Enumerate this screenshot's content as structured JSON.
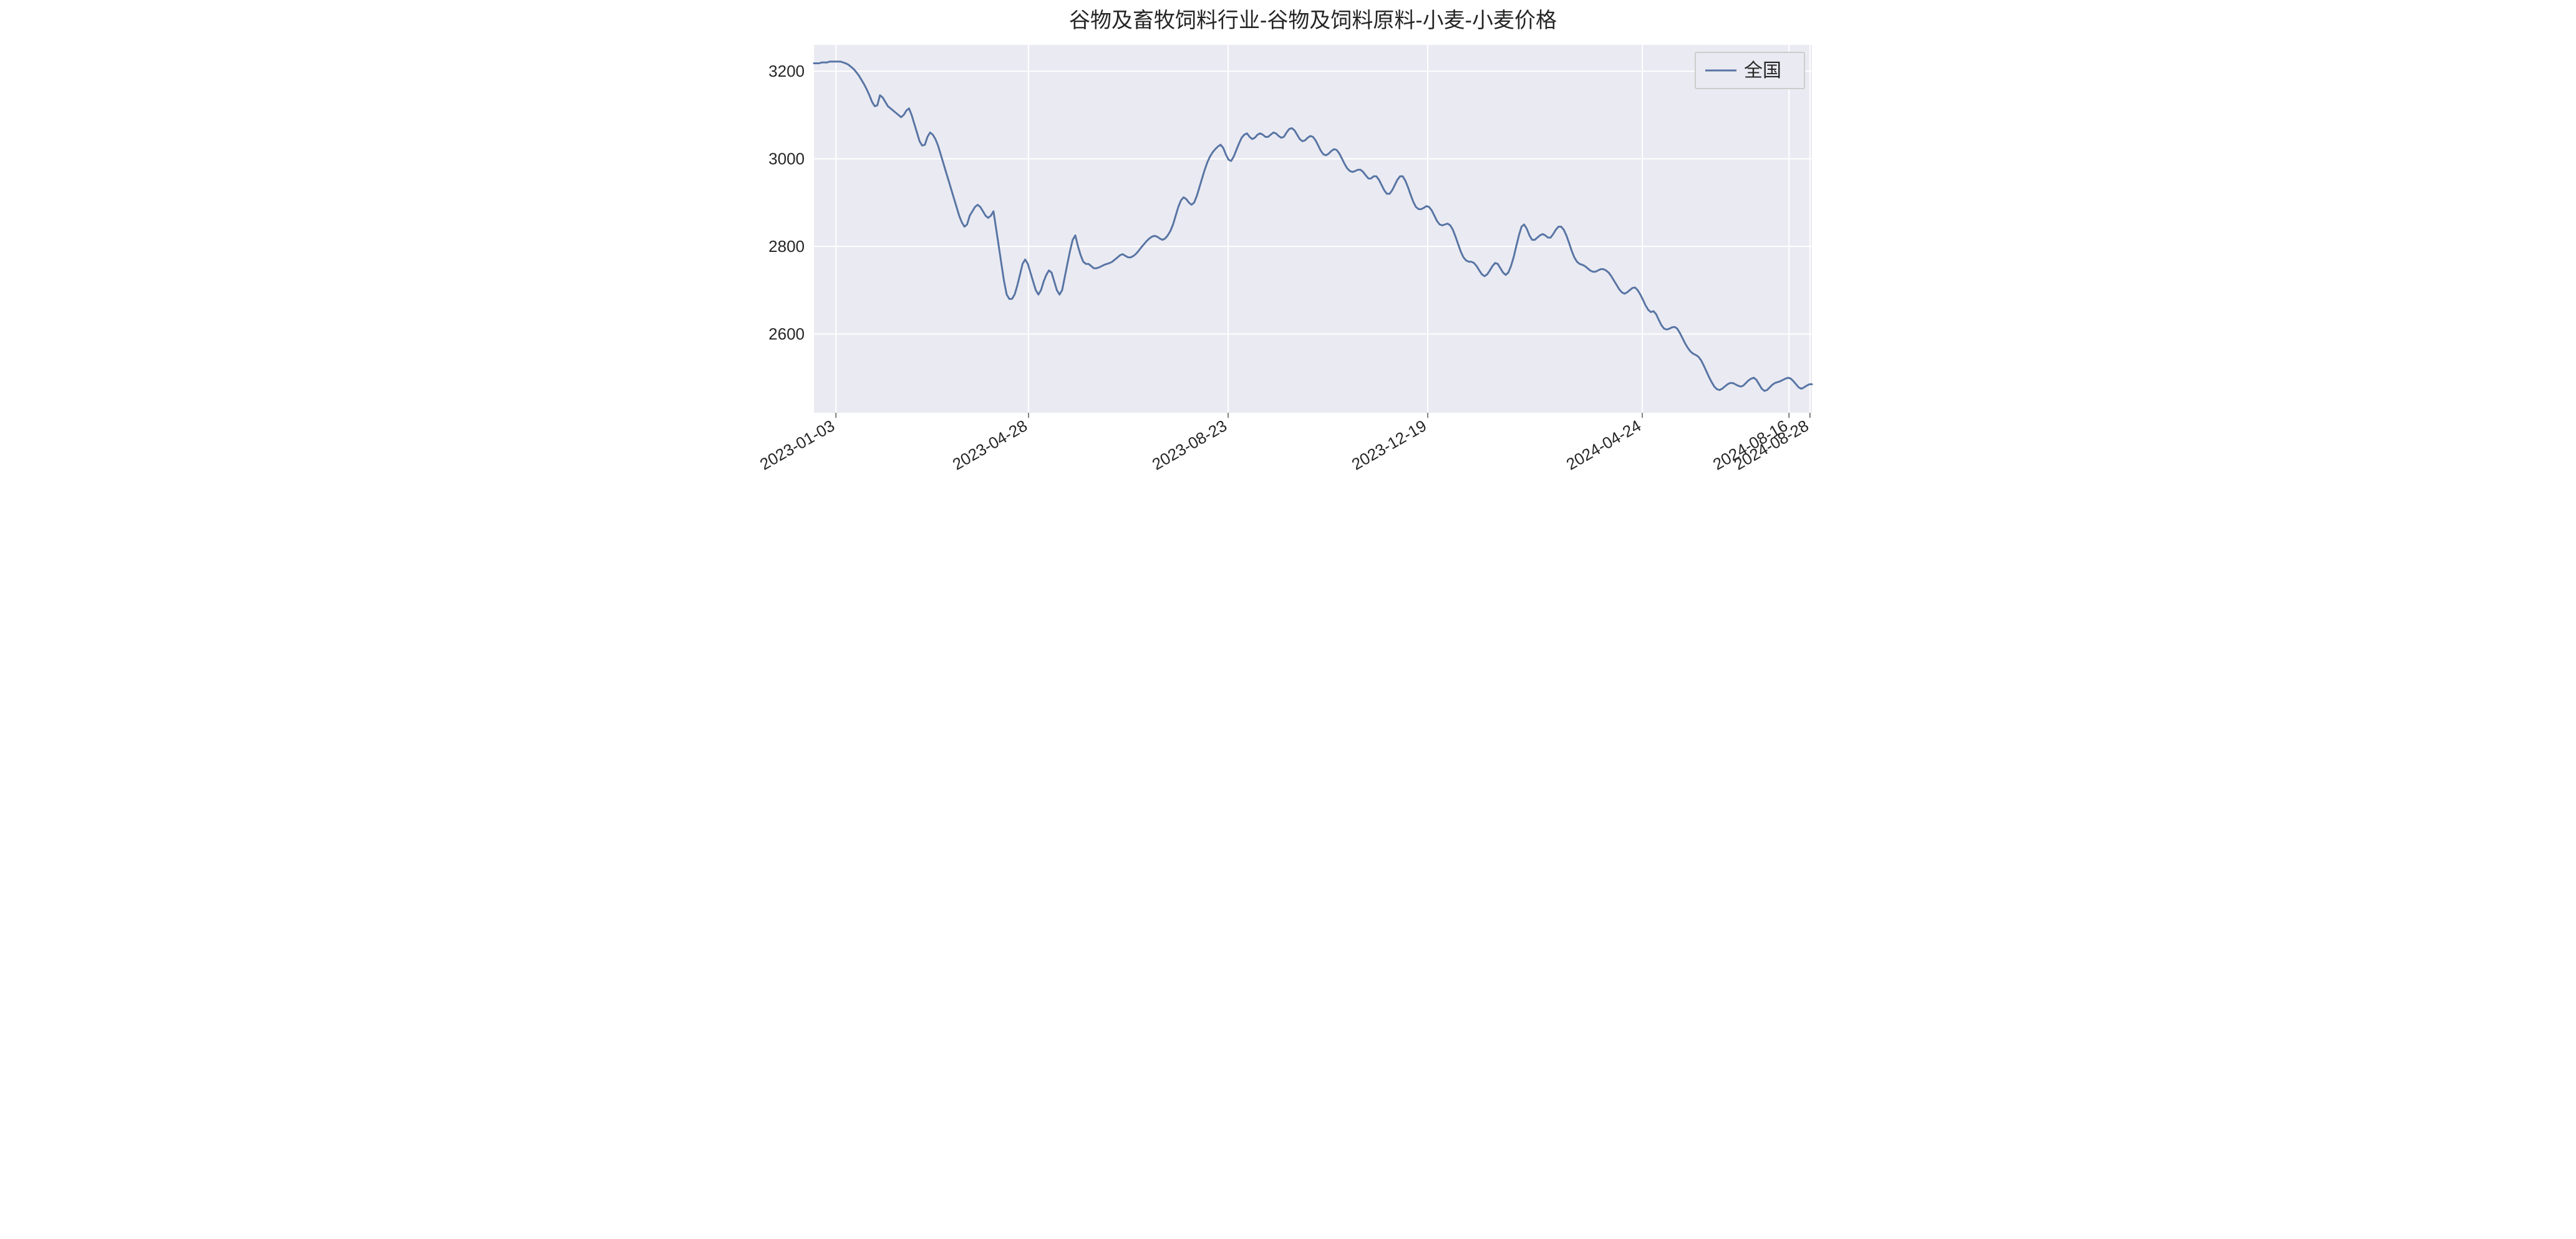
{
  "chart": {
    "type": "line",
    "title": "谷物及畜牧饲料行业-谷物及饲料原料-小麦-小麦价格",
    "title_fontsize": 34,
    "legend": {
      "label": "全国",
      "position": "upper-right"
    },
    "background_color": "#ffffff",
    "plot_background_color": "#eaeaf2",
    "grid_color": "#ffffff",
    "grid_linewidth": 2,
    "line_color": "#5875a4",
    "line_width": 3,
    "tick_fontsize": 26,
    "tick_color": "#262626",
    "ylim": [
      2420,
      3260
    ],
    "yticks": [
      2600,
      2800,
      3000,
      3200
    ],
    "xtick_labels": [
      "2023-01-03",
      "2023-04-28",
      "2023-08-23",
      "2023-12-19",
      "2024-04-24",
      "2024-08-16",
      "2024-08-28"
    ],
    "xtick_positions": [
      0.022,
      0.215,
      0.415,
      0.615,
      0.83,
      0.977,
      0.998
    ],
    "xtick_rotation": 30,
    "series": {
      "name": "全国",
      "values": [
        3218,
        3218,
        3218,
        3220,
        3220,
        3220,
        3222,
        3222,
        3222,
        3222,
        3222,
        3220,
        3218,
        3215,
        3210,
        3205,
        3198,
        3190,
        3180,
        3170,
        3158,
        3145,
        3130,
        3120,
        3122,
        3145,
        3140,
        3130,
        3120,
        3115,
        3110,
        3105,
        3100,
        3095,
        3100,
        3110,
        3115,
        3100,
        3080,
        3060,
        3040,
        3030,
        3032,
        3050,
        3060,
        3055,
        3045,
        3030,
        3010,
        2990,
        2970,
        2950,
        2930,
        2910,
        2890,
        2870,
        2855,
        2845,
        2850,
        2870,
        2880,
        2890,
        2895,
        2890,
        2880,
        2870,
        2865,
        2870,
        2880,
        2840,
        2800,
        2760,
        2720,
        2690,
        2680,
        2680,
        2690,
        2710,
        2735,
        2760,
        2770,
        2760,
        2740,
        2720,
        2700,
        2690,
        2700,
        2720,
        2735,
        2745,
        2740,
        2720,
        2700,
        2690,
        2700,
        2730,
        2760,
        2790,
        2815,
        2825,
        2800,
        2780,
        2765,
        2760,
        2760,
        2755,
        2750,
        2750,
        2752,
        2755,
        2758,
        2760,
        2762,
        2765,
        2770,
        2775,
        2780,
        2782,
        2778,
        2775,
        2775,
        2778,
        2783,
        2790,
        2798,
        2805,
        2812,
        2818,
        2822,
        2824,
        2822,
        2818,
        2815,
        2818,
        2825,
        2835,
        2850,
        2870,
        2890,
        2905,
        2912,
        2908,
        2900,
        2895,
        2900,
        2915,
        2935,
        2955,
        2975,
        2992,
        3005,
        3015,
        3022,
        3028,
        3032,
        3025,
        3010,
        2998,
        2995,
        3005,
        3020,
        3035,
        3048,
        3055,
        3058,
        3050,
        3045,
        3048,
        3055,
        3058,
        3055,
        3050,
        3050,
        3055,
        3060,
        3058,
        3052,
        3048,
        3050,
        3060,
        3068,
        3070,
        3065,
        3055,
        3045,
        3040,
        3042,
        3048,
        3052,
        3050,
        3042,
        3030,
        3018,
        3010,
        3008,
        3012,
        3018,
        3022,
        3020,
        3012,
        3000,
        2988,
        2978,
        2972,
        2970,
        2972,
        2975,
        2975,
        2970,
        2962,
        2955,
        2955,
        2960,
        2960,
        2952,
        2940,
        2928,
        2920,
        2920,
        2928,
        2940,
        2952,
        2960,
        2960,
        2950,
        2935,
        2918,
        2902,
        2890,
        2885,
        2885,
        2888,
        2892,
        2890,
        2882,
        2870,
        2858,
        2850,
        2848,
        2850,
        2852,
        2848,
        2838,
        2822,
        2805,
        2788,
        2775,
        2768,
        2765,
        2765,
        2762,
        2755,
        2745,
        2736,
        2732,
        2736,
        2745,
        2755,
        2762,
        2760,
        2750,
        2740,
        2735,
        2740,
        2755,
        2775,
        2800,
        2825,
        2845,
        2850,
        2840,
        2825,
        2815,
        2815,
        2820,
        2825,
        2828,
        2825,
        2820,
        2820,
        2828,
        2838,
        2845,
        2845,
        2838,
        2825,
        2808,
        2790,
        2775,
        2765,
        2760,
        2758,
        2755,
        2750,
        2745,
        2742,
        2742,
        2745,
        2748,
        2748,
        2745,
        2740,
        2732,
        2722,
        2712,
        2702,
        2695,
        2692,
        2695,
        2700,
        2705,
        2706,
        2700,
        2690,
        2678,
        2665,
        2655,
        2650,
        2652,
        2645,
        2632,
        2620,
        2612,
        2610,
        2612,
        2615,
        2616,
        2612,
        2602,
        2590,
        2578,
        2568,
        2560,
        2555,
        2552,
        2548,
        2540,
        2528,
        2515,
        2502,
        2490,
        2480,
        2474,
        2472,
        2475,
        2480,
        2485,
        2488,
        2488,
        2485,
        2482,
        2480,
        2482,
        2488,
        2494,
        2498,
        2500,
        2495,
        2485,
        2475,
        2470,
        2472,
        2478,
        2484,
        2488,
        2490,
        2492,
        2495,
        2498,
        2500,
        2498,
        2492,
        2485,
        2478,
        2475,
        2478,
        2482,
        2485,
        2485
      ]
    }
  }
}
